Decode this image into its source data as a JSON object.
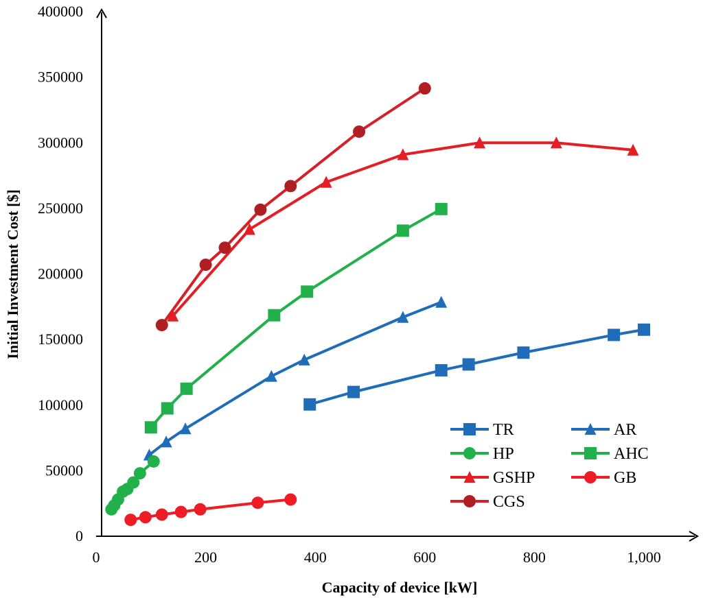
{
  "chart_data": {
    "type": "line",
    "title": "",
    "xlabel": "Capacity of device [kW]",
    "ylabel": "Initial Investment Cost [$]",
    "xlim": [
      0,
      1100
    ],
    "ylim": [
      0,
      400000
    ],
    "x_ticks": [
      0,
      200,
      400,
      600,
      800,
      1000
    ],
    "x_tick_labels": [
      "0",
      "200",
      "400",
      "600",
      "800",
      "1,000"
    ],
    "y_ticks": [
      0,
      50000,
      100000,
      150000,
      200000,
      250000,
      300000,
      350000,
      400000
    ],
    "y_tick_labels": [
      "0",
      "50000",
      "100000",
      "150000",
      "200000",
      "250000",
      "300000",
      "350000",
      "400000"
    ],
    "grid": false,
    "legend_position": "bottom-right",
    "series": [
      {
        "name": "TR",
        "marker": "square",
        "color": "#1F6DB8",
        "x": [
          390,
          470,
          630,
          680,
          780,
          945,
          1000
        ],
        "y": [
          100500,
          110000,
          126500,
          131000,
          140000,
          153500,
          157500
        ]
      },
      {
        "name": "AR",
        "marker": "triangle",
        "color": "#1F6DB8",
        "x": [
          97,
          128,
          163,
          320,
          380,
          560,
          630
        ],
        "y": [
          62000,
          72000,
          82000,
          122000,
          134500,
          167000,
          178500
        ]
      },
      {
        "name": "HP",
        "marker": "circle",
        "color": "#22B04B",
        "x": [
          28,
          33,
          40,
          49,
          57,
          68,
          80,
          105
        ],
        "y": [
          20500,
          23500,
          28000,
          34000,
          36000,
          41000,
          48000,
          57000
        ]
      },
      {
        "name": "AHC",
        "marker": "square",
        "color": "#22B04B",
        "x": [
          100,
          130,
          165,
          325,
          385,
          560,
          630
        ],
        "y": [
          83000,
          97500,
          112500,
          168500,
          186500,
          233000,
          249500
        ]
      },
      {
        "name": "GSHP",
        "marker": "triangle",
        "color": "#E31E24",
        "x": [
          140,
          280,
          420,
          560,
          700,
          840,
          980
        ],
        "y": [
          168000,
          234000,
          270000,
          291000,
          300000,
          300000,
          294500
        ]
      },
      {
        "name": "GB",
        "marker": "circle",
        "color": "#EE1C25",
        "x": [
          63,
          90,
          120,
          155,
          190,
          295,
          355
        ],
        "y": [
          12500,
          14500,
          16500,
          18500,
          20500,
          25500,
          28000
        ]
      },
      {
        "name": "CGS",
        "marker": "circle",
        "color": "#D61F26",
        "marker_color": "#B01E24",
        "x": [
          120,
          200,
          235,
          300,
          355,
          480,
          600
        ],
        "y": [
          161000,
          207000,
          220000,
          249000,
          267000,
          308500,
          341500
        ]
      }
    ]
  }
}
